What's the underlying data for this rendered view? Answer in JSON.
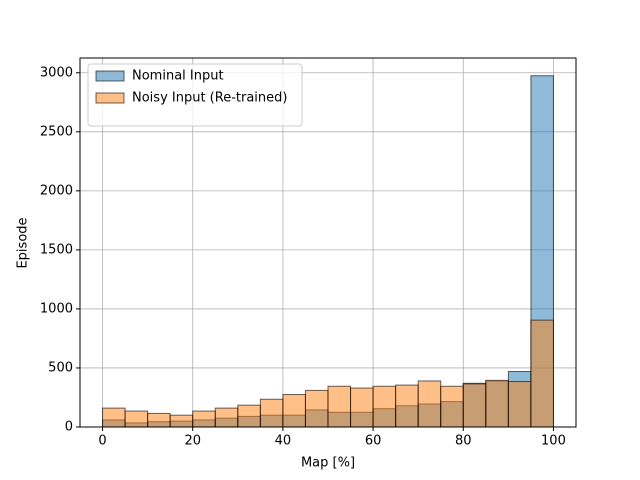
{
  "chart_data": {
    "type": "histogram",
    "bins": [
      0,
      5,
      10,
      15,
      20,
      25,
      30,
      35,
      40,
      45,
      50,
      55,
      60,
      65,
      70,
      75,
      80,
      85,
      90,
      95,
      100
    ],
    "series": [
      {
        "name": "Nominal Input",
        "color": "#1f77b4",
        "values": [
          60,
          35,
          45,
          50,
          60,
          75,
          90,
          100,
          100,
          145,
          125,
          125,
          155,
          180,
          195,
          215,
          370,
          390,
          470,
          2975
        ]
      },
      {
        "name": "Noisy Input (Re-trained)",
        "color": "#ff7f0e",
        "values": [
          160,
          135,
          115,
          100,
          135,
          160,
          185,
          235,
          275,
          310,
          345,
          330,
          345,
          355,
          390,
          345,
          365,
          395,
          385,
          905
        ]
      }
    ],
    "xlabel": "Map [%]",
    "ylabel": "Episode",
    "xlim": [
      -5,
      105
    ],
    "ylim": [
      0,
      3125
    ],
    "xticks": [
      0,
      20,
      40,
      60,
      80,
      100
    ],
    "yticks": [
      0,
      500,
      1000,
      1500,
      2000,
      2500,
      3000
    ],
    "grid": true,
    "legend": "upper left"
  }
}
